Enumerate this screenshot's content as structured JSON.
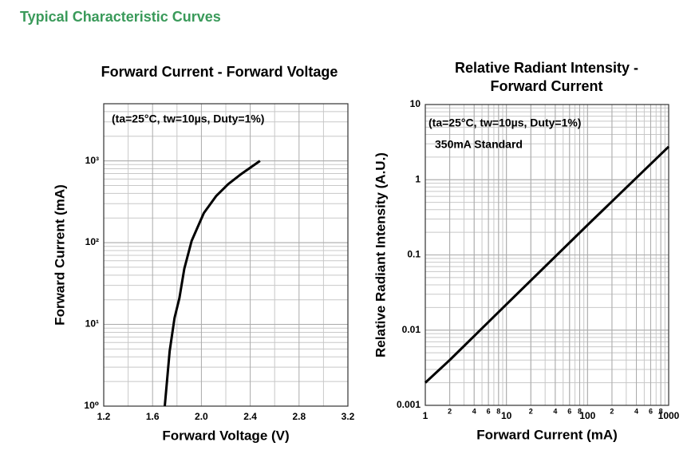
{
  "heading": "Typical Characteristic Curves",
  "chart_data": [
    {
      "type": "line",
      "title": [
        "Forward Current - Forward Voltage"
      ],
      "x_label": "Forward Voltage (V)",
      "y_label": "Forward Current (mA)",
      "annotations": [
        "(ta=25°C, tw=10µs, Duty=1%)"
      ],
      "x": [
        1.7,
        1.74,
        1.78,
        1.82,
        1.86,
        1.92,
        2.02,
        2.12,
        2.22,
        2.32,
        2.48
      ],
      "values": [
        1,
        4.7,
        12,
        21,
        48,
        105,
        230,
        370,
        520,
        680,
        1000
      ],
      "color": "#000000",
      "xlim": [
        1.2,
        3.2
      ],
      "xticks": [
        1.2,
        1.6,
        {
          "value": 2,
          "label": "2.0"
        },
        2.4,
        2.8,
        3.2
      ],
      "ylim": [
        1,
        5000
      ],
      "yticks": [
        {
          "value": 1,
          "label": "10⁰"
        },
        {
          "value": 10,
          "label": "10¹"
        },
        {
          "value": 100,
          "label": "10²"
        },
        {
          "value": 1000,
          "label": "10³"
        }
      ],
      "ylog": true,
      "grid": true
    },
    {
      "type": "line",
      "title": [
        "Relative Radiant Intensity -",
        "Forward Current"
      ],
      "x_label": "Forward Current (mA)",
      "y_label": "Relative Radiant Intensity (A.U.)",
      "annotations": [
        "(ta=25°C, tw=10µs, Duty=1%)",
        "350mA Standard"
      ],
      "x": [
        1,
        2,
        10,
        100,
        1000
      ],
      "values": [
        0.002,
        0.004,
        0.022,
        0.25,
        2.75
      ],
      "color": "#000000",
      "xlim": [
        1,
        1000
      ],
      "xticks": [
        1,
        2,
        4,
        6,
        8,
        10,
        {
          "value": 20,
          "label": "2"
        },
        {
          "value": 40,
          "label": "4"
        },
        {
          "value": 60,
          "label": "6"
        },
        {
          "value": 80,
          "label": "8"
        },
        100,
        {
          "value": 200,
          "label": "2"
        },
        {
          "value": 400,
          "label": "4"
        },
        {
          "value": 600,
          "label": "6"
        },
        {
          "value": 800,
          "label": "8"
        },
        1000
      ],
      "ylim": [
        0.001,
        10
      ],
      "yticks": [
        0.001,
        0.01,
        0.1,
        1,
        10
      ],
      "xlog": true,
      "ylog": true,
      "grid": true
    }
  ]
}
